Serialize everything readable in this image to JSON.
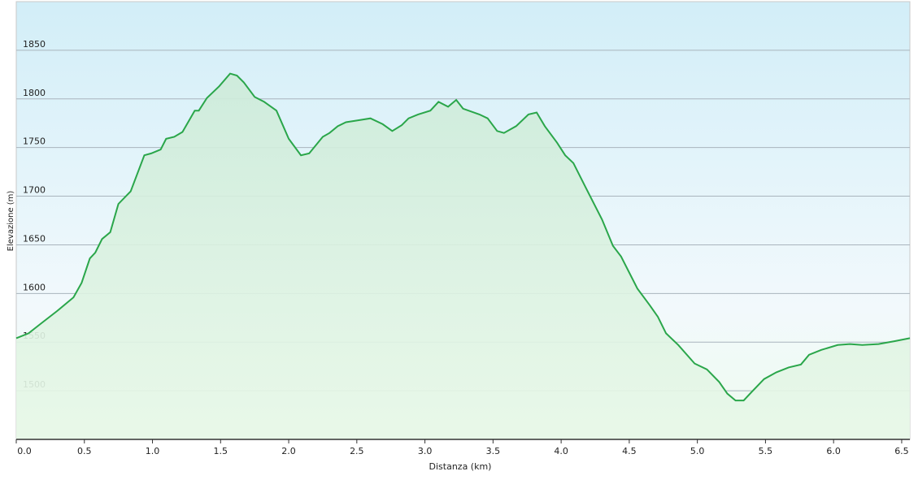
{
  "chart_data": {
    "type": "area-line",
    "x_label": "Distanza  (km)",
    "y_label": "Elevazione (m)",
    "color": "#2aa64a",
    "x": [
      0,
      0.09,
      0.18,
      0.3,
      0.42,
      0.48,
      0.54,
      0.58,
      0.63,
      0.69,
      0.75,
      0.84,
      0.94,
      0.99,
      1.06,
      1.1,
      1.16,
      1.22,
      1.31,
      1.34,
      1.4,
      1.49,
      1.57,
      1.62,
      1.67,
      1.75,
      1.82,
      1.91,
      2.0,
      2.09,
      2.15,
      2.25,
      2.3,
      2.36,
      2.42,
      2.51,
      2.6,
      2.69,
      2.76,
      2.83,
      2.88,
      2.95,
      3.04,
      3.1,
      3.17,
      3.23,
      3.28,
      3.4,
      3.46,
      3.53,
      3.58,
      3.67,
      3.76,
      3.82,
      3.88,
      3.97,
      4.03,
      4.09,
      4.18,
      4.3,
      4.38,
      4.44,
      4.56,
      4.65,
      4.71,
      4.77,
      4.86,
      4.98,
      5.07,
      5.16,
      5.22,
      5.28,
      5.34,
      5.4,
      5.49,
      5.58,
      5.67,
      5.76,
      5.82,
      5.91,
      6.03,
      6.12,
      6.21,
      6.33,
      6.45,
      6.56
    ],
    "values": [
      1554,
      1559,
      1569,
      1582,
      1596,
      1611,
      1636,
      1642,
      1656,
      1663,
      1692,
      1705,
      1742,
      1744,
      1748,
      1759,
      1761,
      1766,
      1788,
      1788,
      1801,
      1813,
      1826,
      1824,
      1817,
      1802,
      1797,
      1788,
      1759,
      1742,
      1744,
      1761,
      1765,
      1772,
      1776,
      1778,
      1780,
      1774,
      1767,
      1773,
      1780,
      1784,
      1788,
      1797,
      1792,
      1799,
      1790,
      1784,
      1780,
      1767,
      1765,
      1772,
      1784,
      1786,
      1772,
      1755,
      1742,
      1734,
      1709,
      1676,
      1649,
      1638,
      1605,
      1588,
      1576,
      1559,
      1547,
      1528,
      1522,
      1509,
      1497,
      1490,
      1490,
      1499,
      1512,
      1519,
      1524,
      1527,
      1537,
      1542,
      1547,
      1548,
      1547,
      1548,
      1551,
      1554
    ],
    "xlim": [
      0,
      6.56
    ],
    "ylim": [
      1450,
      1900
    ],
    "xticks": [
      {
        "value": 0,
        "label": "0.0"
      },
      0.5,
      {
        "value": 1,
        "label": "1.0"
      },
      1.5,
      {
        "value": 2,
        "label": "2.0"
      },
      2.5,
      {
        "value": 3,
        "label": "3.0"
      },
      3.5,
      {
        "value": 4,
        "label": "4.0"
      },
      4.5,
      {
        "value": 5,
        "label": "5.0"
      },
      5.5,
      {
        "value": 6,
        "label": "6.0"
      },
      6.5
    ],
    "yticks": [
      1500,
      1550,
      1600,
      1650,
      1700,
      1750,
      1800,
      1850
    ],
    "grid": true
  }
}
